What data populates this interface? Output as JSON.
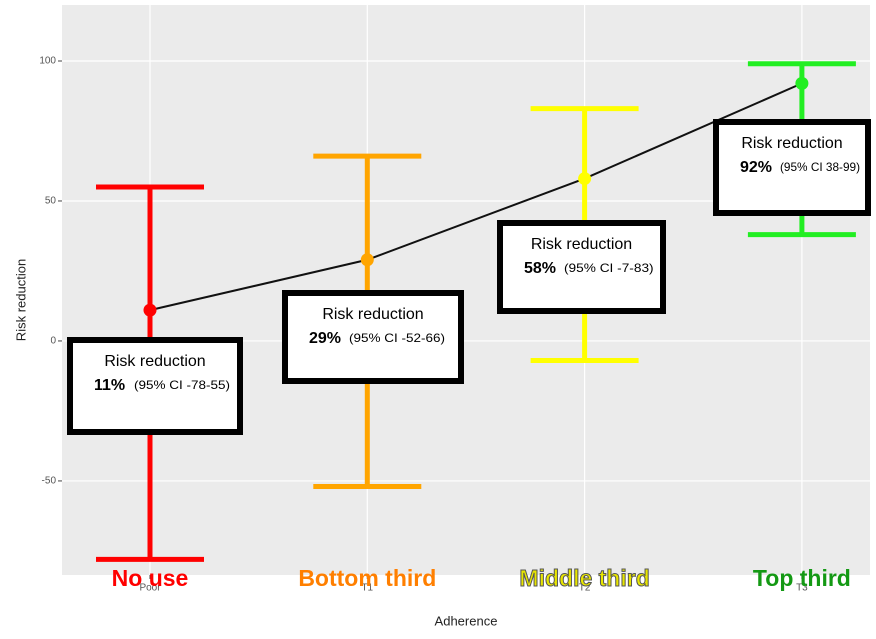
{
  "chart_data": {
    "type": "errorbar",
    "x_label": "Adherence",
    "y_label": "Risk reduction",
    "categories": [
      "Poor",
      "T1",
      "T2",
      "T3"
    ],
    "group_labels": [
      "No use",
      "Bottom third",
      "Middle third",
      "Top third"
    ],
    "group_label_colors": [
      "#ff0000",
      "#ff7f00",
      "#e8e600",
      "#149914"
    ],
    "values": [
      11,
      29,
      58,
      92
    ],
    "lower": [
      -78,
      -52,
      -7,
      38
    ],
    "upper": [
      55,
      66,
      83,
      99
    ],
    "colors": [
      "#ff0000",
      "#ffa500",
      "#ffff00",
      "#22ee22"
    ],
    "line_color": "#111111",
    "annotation_text": "Risk reduction",
    "value_labels": [
      "11%",
      "29%",
      "58%",
      "92%"
    ],
    "ci_labels": [
      "(95% CI -78-55)",
      "(95% CI -52-66)",
      "(95% CI -7-83)",
      "(95% CI 38-99)"
    ],
    "ylim": [
      -83.6,
      120
    ],
    "yticks": [
      -50,
      0,
      50,
      100
    ],
    "grid": true
  }
}
